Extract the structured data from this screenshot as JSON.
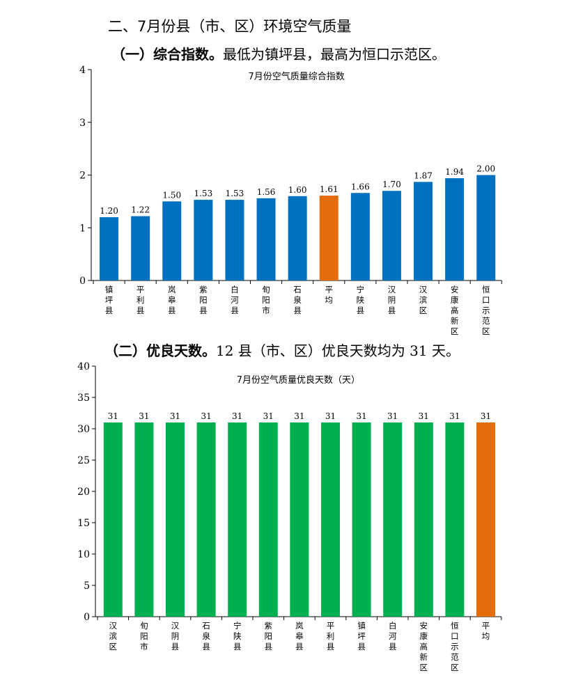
{
  "heading": "二、7月份县（市、区）环境空气质量",
  "section1": {
    "lead": "（一）综合指数。",
    "text": "最低为镇坪县，最高为恒口示范区。"
  },
  "section2": {
    "lead": "（二）优良天数。",
    "text": "12 县（市、区）优良天数均为 31 天。"
  },
  "colors": {
    "normal1": "#0070C0",
    "normal2": "#00B050",
    "average": "#E46C0A"
  },
  "chart_data": [
    {
      "type": "bar",
      "title": "7月份空气质量综合指数",
      "categories": [
        "镇坪县",
        "平利县",
        "岚皋县",
        "紫阳县",
        "白河县",
        "旬阳市",
        "石泉县",
        "平均",
        "宁陕县",
        "汉阴县",
        "汉滨区",
        "安康高新区",
        "恒口示范区"
      ],
      "values": [
        1.2,
        1.22,
        1.5,
        1.53,
        1.53,
        1.56,
        1.6,
        1.61,
        1.66,
        1.7,
        1.87,
        1.94,
        2.0
      ],
      "value_labels": [
        "1.20",
        "1.22",
        "1.50",
        "1.53",
        "1.53",
        "1.56",
        "1.60",
        "1.61",
        "1.66",
        "1.70",
        "1.87",
        "1.94",
        "2.00"
      ],
      "highlight": "平均",
      "ylim": [
        0,
        4
      ],
      "yticks": [
        0,
        1,
        2,
        3,
        4
      ],
      "ytick_labels": [
        "0",
        "1",
        "2",
        "3",
        "4"
      ],
      "grid": false,
      "legend": "none"
    },
    {
      "type": "bar",
      "title": "7月份空气质量优良天数（天）",
      "categories": [
        "汉滨区",
        "旬阳市",
        "汉阴县",
        "石泉县",
        "宁陕县",
        "紫阳县",
        "岚皋县",
        "平利县",
        "镇坪县",
        "白河县",
        "安康高新区",
        "恒口示范区",
        "平均"
      ],
      "values": [
        31,
        31,
        31,
        31,
        31,
        31,
        31,
        31,
        31,
        31,
        31,
        31,
        31
      ],
      "value_labels": [
        "31",
        "31",
        "31",
        "31",
        "31",
        "31",
        "31",
        "31",
        "31",
        "31",
        "31",
        "31",
        "31"
      ],
      "highlight": "平均",
      "ylim": [
        0,
        40
      ],
      "yticks": [
        0,
        5,
        10,
        15,
        20,
        25,
        30,
        35,
        40
      ],
      "ytick_labels": [
        "0",
        "5",
        "10",
        "15",
        "20",
        "25",
        "30",
        "35",
        "40"
      ],
      "grid": false,
      "legend": "none"
    }
  ]
}
